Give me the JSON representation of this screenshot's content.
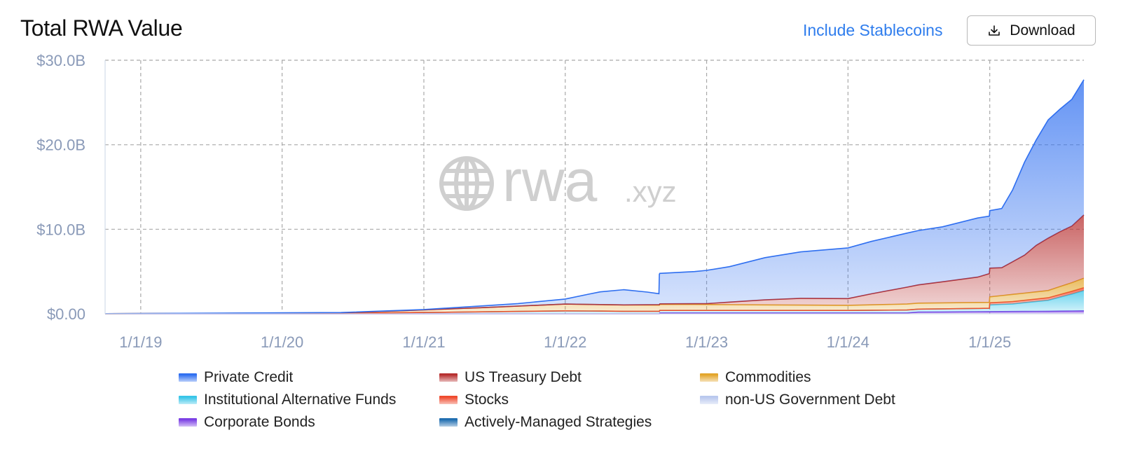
{
  "header": {
    "title": "Total RWA Value",
    "include_stablecoins_label": "Include Stablecoins",
    "download_label": "Download"
  },
  "watermark": {
    "text_main": "rwa",
    "text_suffix": ".xyz"
  },
  "chart_data": {
    "type": "area",
    "stacked": true,
    "title": "Total RWA Value",
    "xlabel": "",
    "ylabel": "",
    "x_domain": [
      "2018-10-01",
      "2025-09-01"
    ],
    "ylim": [
      0,
      30
    ],
    "y_unit": "billions USD",
    "y_ticks": [
      {
        "value": 0,
        "label": "$0.00"
      },
      {
        "value": 10,
        "label": "$10.0B"
      },
      {
        "value": 20,
        "label": "$20.0B"
      },
      {
        "value": 30,
        "label": "$30.0B"
      }
    ],
    "x_ticks": [
      {
        "date": "2019-01-01",
        "label": "1/1/19"
      },
      {
        "date": "2020-01-01",
        "label": "1/1/20"
      },
      {
        "date": "2021-01-01",
        "label": "1/1/21"
      },
      {
        "date": "2022-01-01",
        "label": "1/1/22"
      },
      {
        "date": "2023-01-01",
        "label": "1/1/23"
      },
      {
        "date": "2024-01-01",
        "label": "1/1/24"
      },
      {
        "date": "2025-01-01",
        "label": "1/1/25"
      }
    ],
    "grid": true,
    "legend_position": "bottom",
    "series_order": [
      "Corporate Bonds",
      "Institutional Alternative Funds",
      "Stocks",
      "Commodities",
      "US Treasury Debt",
      "Private Credit"
    ],
    "series": [
      {
        "name": "Corporate Bonds",
        "color": "#7b3fe4",
        "points": [
          [
            "2018-10-01",
            0
          ],
          [
            "2022-09-01",
            0
          ],
          [
            "2022-09-02",
            0.1
          ],
          [
            "2024-06-01",
            0.1
          ],
          [
            "2024-07-01",
            0.2
          ],
          [
            "2025-06-01",
            0.3
          ],
          [
            "2025-09-01",
            0.35
          ]
        ]
      },
      {
        "name": "Institutional Alternative Funds",
        "color": "#38c5e8",
        "points": [
          [
            "2018-10-01",
            0.02
          ],
          [
            "2020-06-01",
            0.05
          ],
          [
            "2021-04-01",
            0.2
          ],
          [
            "2022-01-01",
            0.35
          ],
          [
            "2022-06-01",
            0.3
          ],
          [
            "2023-01-01",
            0.3
          ],
          [
            "2024-01-01",
            0.3
          ],
          [
            "2024-06-01",
            0.35
          ],
          [
            "2024-12-31",
            0.4
          ],
          [
            "2025-01-01",
            0.8
          ],
          [
            "2025-03-01",
            0.9
          ],
          [
            "2025-06-01",
            1.3
          ],
          [
            "2025-08-01",
            2.0
          ],
          [
            "2025-09-01",
            2.4
          ]
        ]
      },
      {
        "name": "Stocks",
        "color": "#ef4a2e",
        "points": [
          [
            "2018-10-01",
            0
          ],
          [
            "2024-12-31",
            0
          ],
          [
            "2025-01-01",
            0.25
          ],
          [
            "2025-06-01",
            0.3
          ],
          [
            "2025-09-01",
            0.35
          ]
        ]
      },
      {
        "name": "Commodities",
        "color": "#e3a52a",
        "points": [
          [
            "2018-10-01",
            0
          ],
          [
            "2020-06-01",
            0.05
          ],
          [
            "2021-01-01",
            0.3
          ],
          [
            "2021-06-01",
            0.5
          ],
          [
            "2022-01-01",
            0.8
          ],
          [
            "2022-06-01",
            0.75
          ],
          [
            "2023-01-01",
            0.7
          ],
          [
            "2023-06-01",
            0.65
          ],
          [
            "2024-01-01",
            0.6
          ],
          [
            "2024-06-01",
            0.7
          ],
          [
            "2024-12-31",
            0.7
          ],
          [
            "2025-03-01",
            0.85
          ],
          [
            "2025-06-01",
            0.85
          ],
          [
            "2025-09-01",
            1.1
          ]
        ]
      },
      {
        "name": "US Treasury Debt",
        "color": "#b72f2f",
        "points": [
          [
            "2018-10-01",
            0
          ],
          [
            "2022-06-01",
            0
          ],
          [
            "2022-09-01",
            0.05
          ],
          [
            "2023-01-01",
            0.1
          ],
          [
            "2023-03-01",
            0.3
          ],
          [
            "2023-06-01",
            0.6
          ],
          [
            "2023-09-01",
            0.8
          ],
          [
            "2024-01-01",
            0.8
          ],
          [
            "2024-03-01",
            1.3
          ],
          [
            "2024-06-01",
            2.0
          ],
          [
            "2024-09-01",
            2.5
          ],
          [
            "2024-12-01",
            3.0
          ],
          [
            "2024-12-31",
            3.4
          ],
          [
            "2025-02-01",
            3.3
          ],
          [
            "2025-04-01",
            4.5
          ],
          [
            "2025-05-01",
            5.5
          ],
          [
            "2025-06-01",
            6.2
          ],
          [
            "2025-07-01",
            6.5
          ],
          [
            "2025-08-01",
            6.7
          ],
          [
            "2025-09-01",
            7.5
          ]
        ]
      },
      {
        "name": "Private Credit",
        "color": "#2f6ff0",
        "points": [
          [
            "2018-10-01",
            0
          ],
          [
            "2020-06-01",
            0.05
          ],
          [
            "2021-01-01",
            0.05
          ],
          [
            "2021-06-01",
            0.2
          ],
          [
            "2021-09-01",
            0.3
          ],
          [
            "2022-01-01",
            0.6
          ],
          [
            "2022-03-01",
            1.2
          ],
          [
            "2022-04-01",
            1.5
          ],
          [
            "2022-06-01",
            1.8
          ],
          [
            "2022-08-01",
            1.5
          ],
          [
            "2022-08-31",
            1.3
          ],
          [
            "2022-09-01",
            3.6
          ],
          [
            "2022-12-01",
            3.8
          ],
          [
            "2023-03-01",
            4.2
          ],
          [
            "2023-06-01",
            5.0
          ],
          [
            "2023-09-01",
            5.5
          ],
          [
            "2024-01-01",
            6.0
          ],
          [
            "2024-03-01",
            6.2
          ],
          [
            "2024-06-01",
            6.4
          ],
          [
            "2024-09-01",
            6.5
          ],
          [
            "2024-12-01",
            7.0
          ],
          [
            "2024-12-31",
            6.8
          ],
          [
            "2025-02-01",
            7.0
          ],
          [
            "2025-03-01",
            8.5
          ],
          [
            "2025-04-01",
            11.0
          ],
          [
            "2025-06-01",
            14.0
          ],
          [
            "2025-08-01",
            15.0
          ],
          [
            "2025-09-01",
            16.0
          ]
        ]
      }
    ],
    "legend": [
      {
        "name": "Private Credit",
        "color": "#2f6ff0"
      },
      {
        "name": "US Treasury Debt",
        "color": "#b72f2f"
      },
      {
        "name": "Commodities",
        "color": "#e3a52a"
      },
      {
        "name": "Institutional Alternative Funds",
        "color": "#38c5e8"
      },
      {
        "name": "Stocks",
        "color": "#ef4a2e"
      },
      {
        "name": "non-US Government Debt",
        "color": "#b9c8ee"
      },
      {
        "name": "Corporate Bonds",
        "color": "#7b3fe4"
      },
      {
        "name": "Actively-Managed Strategies",
        "color": "#1f6db0"
      }
    ]
  }
}
